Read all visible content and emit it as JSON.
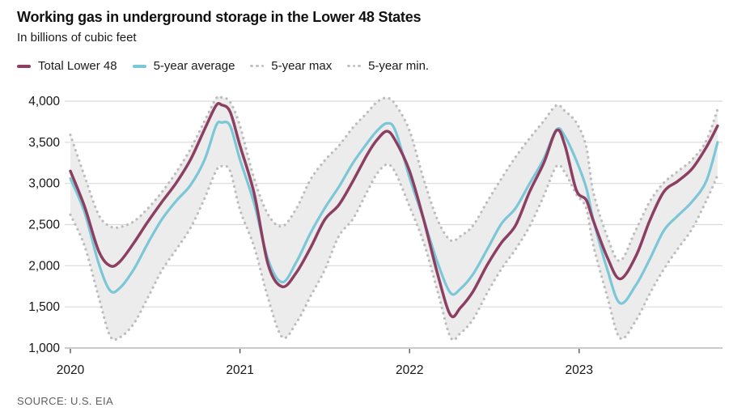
{
  "header": {
    "title": "Working gas in underground storage in the Lower 48 States",
    "subtitle": "In billions of cubic feet"
  },
  "legend": [
    {
      "label": "Total Lower 48",
      "style": "solid",
      "color": "#8d3f62"
    },
    {
      "label": "5-year average",
      "style": "solid",
      "color": "#7cc7d7"
    },
    {
      "label": "5-year max",
      "style": "dotted",
      "color": "#c2c2c2"
    },
    {
      "label": "5-year min.",
      "style": "dotted",
      "color": "#c2c2c2"
    }
  ],
  "source": "SOURCE: U.S. EIA",
  "chart_data": {
    "type": "line",
    "title": "Working gas in underground storage in the Lower 48 States",
    "ylabel": "billions of cubic feet",
    "x_unit": "months since January 2020",
    "x": [
      0,
      1,
      2,
      2.8,
      3.5,
      4.5,
      5.5,
      6.5,
      7.5,
      8.5,
      9.5,
      10.3,
      10.7,
      11.3,
      12,
      13,
      14,
      15,
      16,
      17,
      18,
      19,
      20,
      21,
      21.7,
      22.4,
      23,
      24,
      25,
      26,
      26.9,
      27.6,
      28.5,
      29.5,
      30.5,
      31.5,
      32.5,
      33.5,
      34.4,
      35,
      35.8,
      36.5,
      37,
      38,
      38.9,
      40,
      41,
      42,
      43,
      44,
      45,
      45.8
    ],
    "series": [
      {
        "name": "Total Lower 48",
        "color": "#8d3f62",
        "style": "solid",
        "width": 3.5,
        "values": [
          3150,
          2720,
          2180,
          2000,
          2050,
          2280,
          2540,
          2780,
          3010,
          3290,
          3660,
          3945,
          3955,
          3870,
          3460,
          2880,
          2010,
          1745,
          1920,
          2220,
          2560,
          2740,
          3030,
          3350,
          3530,
          3635,
          3520,
          3150,
          2560,
          1890,
          1400,
          1490,
          1690,
          2010,
          2280,
          2490,
          2900,
          3250,
          3644,
          3460,
          2920,
          2800,
          2550,
          2100,
          1840,
          2110,
          2550,
          2900,
          3030,
          3180,
          3440,
          3700
        ]
      },
      {
        "name": "5-year average",
        "color": "#7cc7d7",
        "style": "solid",
        "width": 3.2,
        "values": [
          3060,
          2650,
          2030,
          1700,
          1730,
          1960,
          2280,
          2570,
          2790,
          2980,
          3290,
          3700,
          3740,
          3700,
          3290,
          2760,
          2070,
          1800,
          2050,
          2400,
          2700,
          2960,
          3250,
          3490,
          3640,
          3730,
          3640,
          3070,
          2560,
          2030,
          1670,
          1720,
          1900,
          2200,
          2510,
          2700,
          3000,
          3300,
          3655,
          3570,
          3280,
          2950,
          2560,
          1950,
          1545,
          1760,
          2080,
          2430,
          2610,
          2780,
          3030,
          3500
        ]
      },
      {
        "name": "5-year max",
        "color": "#bdbdbd",
        "style": "dotted",
        "width": 3.2,
        "values": [
          3590,
          3090,
          2620,
          2480,
          2470,
          2540,
          2700,
          2900,
          3140,
          3420,
          3760,
          4030,
          4045,
          3990,
          3700,
          3060,
          2620,
          2480,
          2700,
          3050,
          3280,
          3460,
          3680,
          3860,
          3990,
          4040,
          3960,
          3640,
          3050,
          2550,
          2310,
          2360,
          2490,
          2780,
          3060,
          3320,
          3550,
          3760,
          3950,
          3880,
          3740,
          3450,
          2900,
          2350,
          2060,
          2430,
          2780,
          3010,
          3150,
          3290,
          3520,
          3900
        ]
      },
      {
        "name": "5-year min.",
        "color": "#bdbdbd",
        "style": "dotted",
        "width": 3.2,
        "values": [
          2620,
          2240,
          1620,
          1150,
          1130,
          1300,
          1620,
          1950,
          2200,
          2460,
          2820,
          3150,
          3210,
          3150,
          2680,
          2230,
          1600,
          1130,
          1310,
          1630,
          1950,
          2360,
          2570,
          2900,
          3120,
          3230,
          3130,
          2720,
          2280,
          1680,
          1130,
          1180,
          1350,
          1670,
          1960,
          2200,
          2480,
          2850,
          3210,
          3130,
          2870,
          2700,
          2250,
          1620,
          1120,
          1330,
          1660,
          1960,
          2210,
          2450,
          2790,
          3100
        ]
      }
    ],
    "band": {
      "upper": "5-year max",
      "lower": "5-year min.",
      "fill": "#ececec"
    },
    "y_ticks": [
      1000,
      1500,
      2000,
      2500,
      3000,
      3500,
      4000
    ],
    "x_ticks": [
      {
        "label": "2020",
        "month": 0
      },
      {
        "label": "2021",
        "month": 12
      },
      {
        "label": "2022",
        "month": 24
      },
      {
        "label": "2023",
        "month": 36
      }
    ],
    "ylim": [
      1000,
      4050
    ],
    "grid": true,
    "legend_position": "top",
    "colors": {
      "grid": "#dadada",
      "baseline": "#c2c2c2",
      "tick": "#4a4a4a",
      "axis_text": "#161616",
      "band_fill": "#ececec",
      "dotted": "#bdbdbd"
    }
  }
}
